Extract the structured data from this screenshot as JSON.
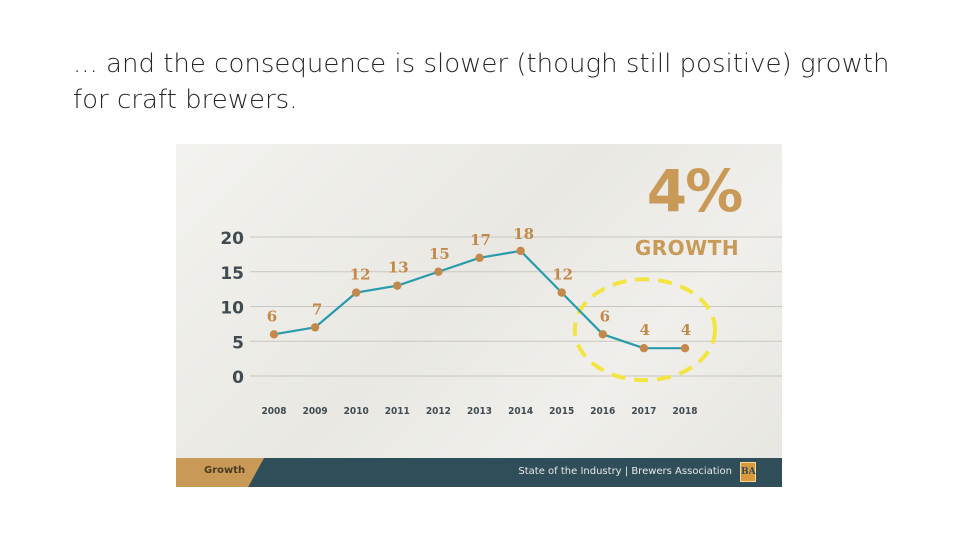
{
  "slide": {
    "title_line1": "... and the consequence is slower (though still positive) growth",
    "title_line2": "for craft brewers."
  },
  "figure": {
    "callout_value": "4%",
    "callout_label": "GROWTH",
    "footer_tab": "Growth",
    "footer_source": "State of the Industry | Brewers Association",
    "footer_logo": "BA",
    "colors": {
      "line": "#2a9bab",
      "marker": "#c4894a",
      "data_label": "#c4894a",
      "axis_text": "#404b52",
      "grid": "#c9c7c0",
      "highlight": "#f3e440",
      "callout": "#c99a57",
      "footer_bar": "#2f4e59",
      "footer_tab": "#c99a57"
    }
  },
  "chart_data": {
    "type": "line",
    "title": "",
    "xlabel": "",
    "ylabel": "",
    "x": [
      "2008",
      "2009",
      "2010",
      "2011",
      "2012",
      "2013",
      "2014",
      "2015",
      "2016",
      "2017",
      "2018"
    ],
    "series": [
      {
        "values": [
          6,
          7,
          12,
          13,
          15,
          17,
          18,
          12,
          6,
          4,
          4
        ]
      }
    ],
    "data_labels": [
      "6",
      "7",
      "12",
      "13",
      "15",
      "17",
      "18",
      "12",
      "6",
      "4",
      "4"
    ],
    "y_ticks": [
      "0",
      "5",
      "10",
      "15",
      "20"
    ],
    "ylim": [
      0,
      20
    ],
    "grid": true,
    "legend": "none",
    "highlight_years": [
      "2016",
      "2017",
      "2018"
    ]
  }
}
